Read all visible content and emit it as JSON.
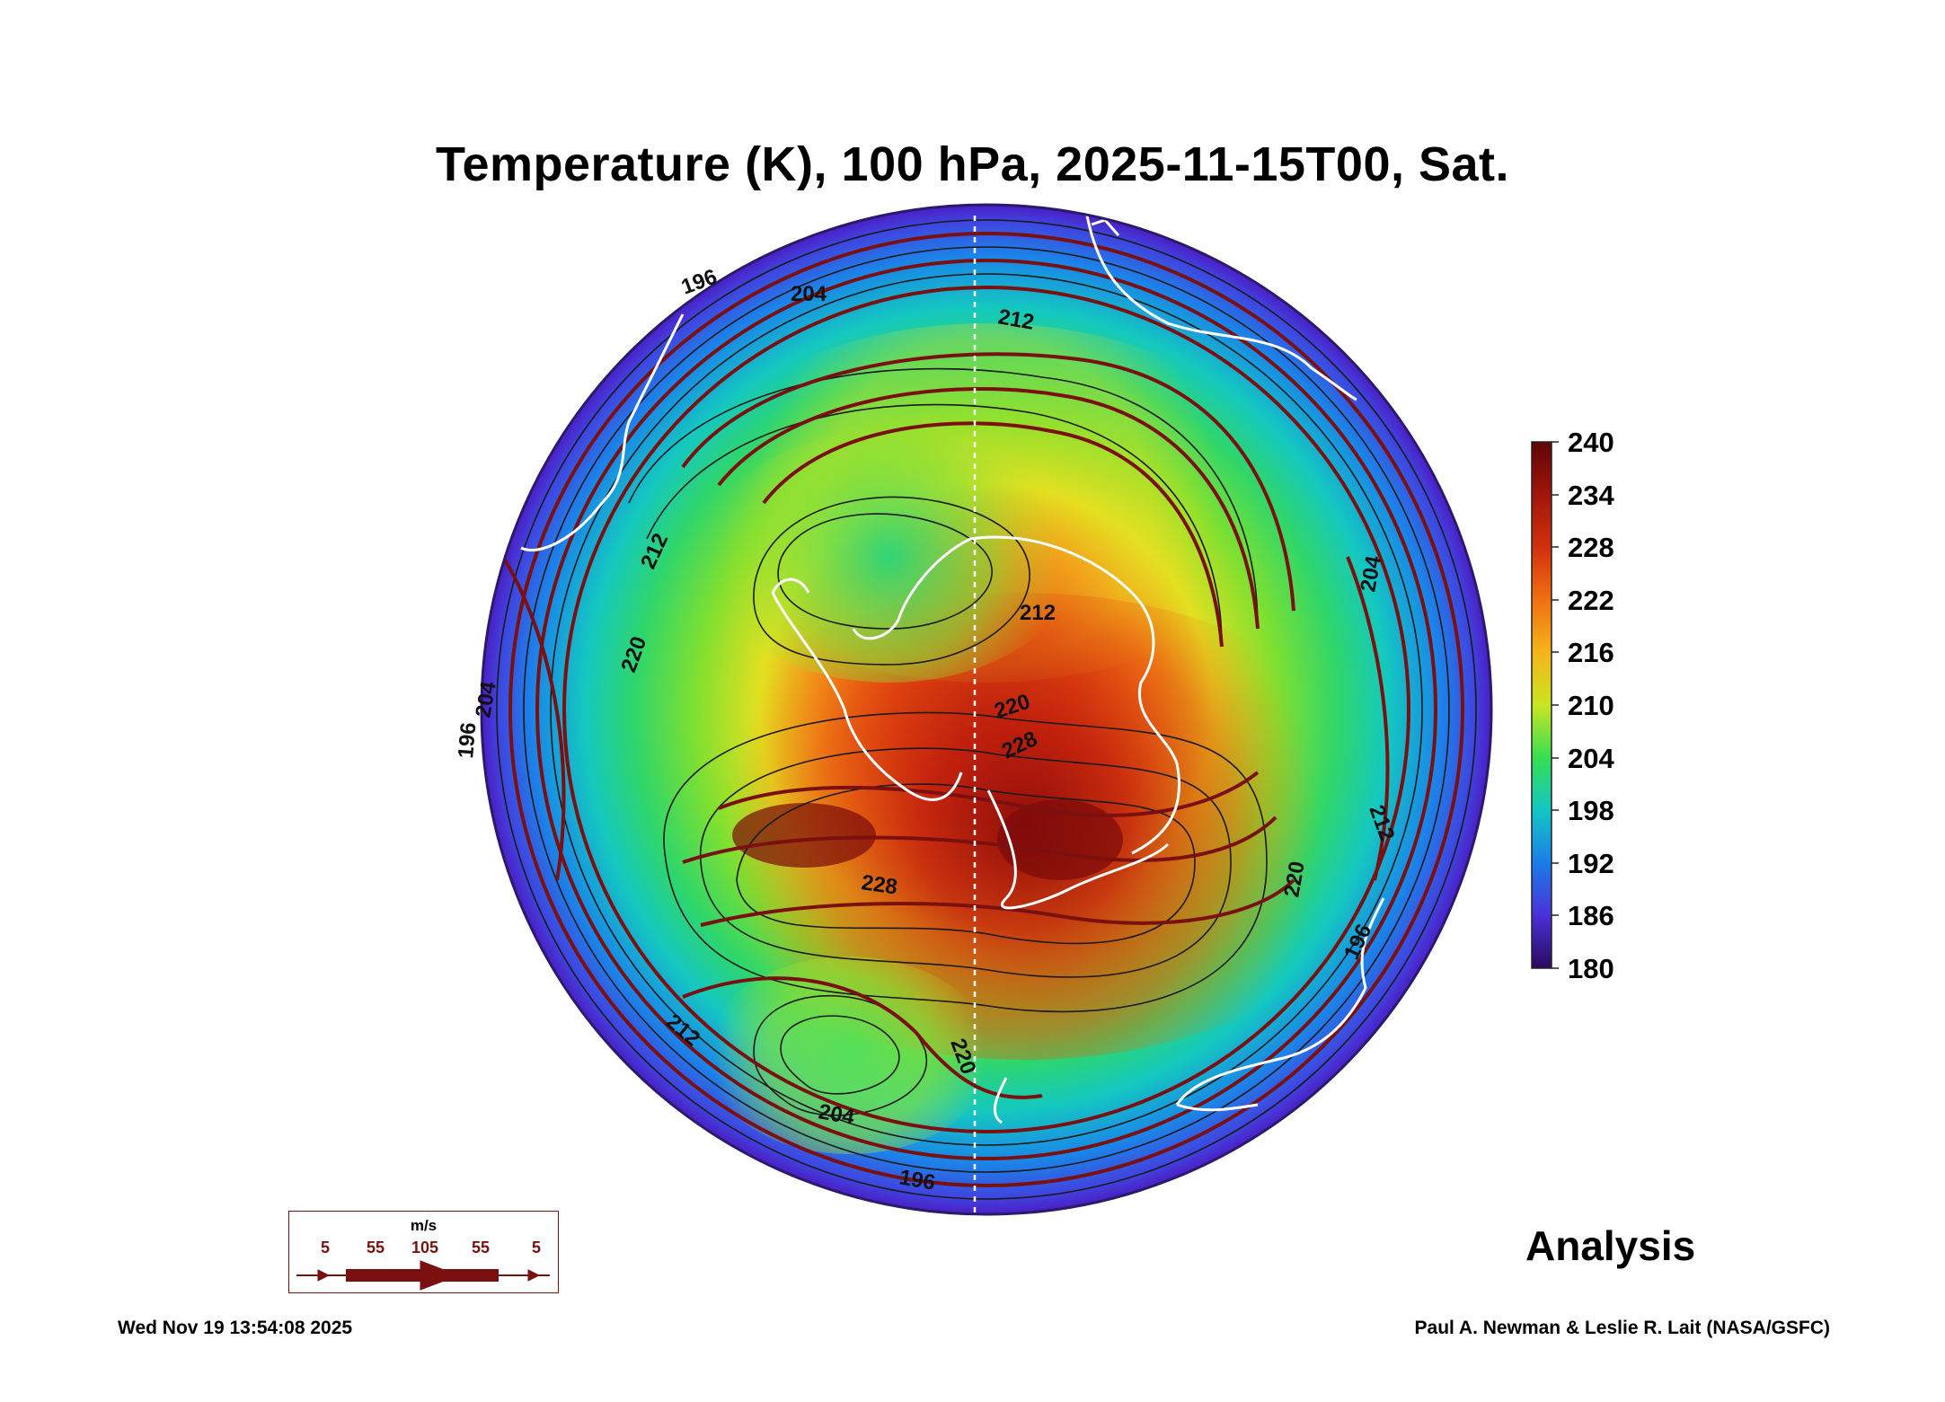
{
  "title": "Temperature (K), 100 hPa, 2025-11-15T00, Sat.",
  "colorbar": {
    "ticks": [
      "240",
      "234",
      "228",
      "222",
      "216",
      "210",
      "204",
      "198",
      "192",
      "186",
      "180"
    ],
    "min": 180,
    "max": 240,
    "colors": [
      "#2a0a5e",
      "#5a1fc0",
      "#2b53e8",
      "#1596e6",
      "#16c9b0",
      "#2fe05a",
      "#9be52a",
      "#e6e621",
      "#f5a41a",
      "#ef5a12",
      "#c9200d",
      "#6a0808"
    ]
  },
  "contour_labels": [
    "196",
    "204",
    "212",
    "212",
    "212",
    "220",
    "220",
    "228",
    "228",
    "204",
    "212",
    "220",
    "196",
    "204",
    "196",
    "212",
    "220",
    "204",
    "196"
  ],
  "legend": {
    "unit": "m/s",
    "speeds": [
      "5",
      "55",
      "105",
      "55",
      "5"
    ]
  },
  "analysis_label": "Analysis",
  "timestamp": "Wed Nov 19 13:54:08 2025",
  "credit": "Paul A. Newman & Leslie R. Lait (NASA/GSFC)",
  "colors": {
    "streamline": "#7a1010",
    "coastline": "#ffffff",
    "contour": "#1a1a1a"
  }
}
